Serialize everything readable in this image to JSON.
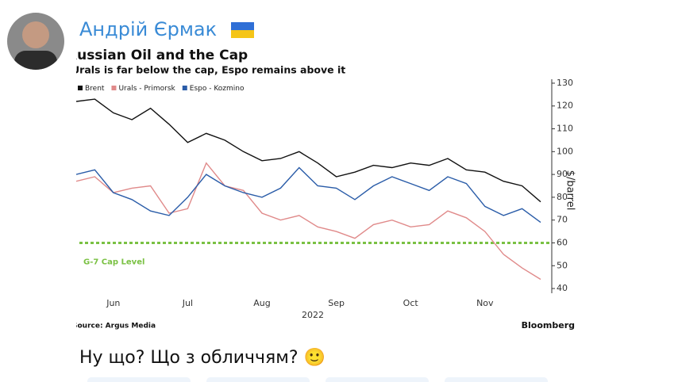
{
  "post": {
    "author": "Андрій Єрмак",
    "message": "Ну що? Що з обличчям? 🙂"
  },
  "chart_data": {
    "type": "line",
    "title": "Russian Oil and the Cap",
    "subtitle": "Urals is far below the cap, Espo remains above it",
    "source": "Source: Argus Media",
    "brand": "Bloomberg",
    "y_label": "$/barrel",
    "x_label": "2022",
    "categories": [
      null,
      null,
      "Jun",
      null,
      null,
      null,
      "Jul",
      null,
      null,
      null,
      "Aug",
      null,
      null,
      null,
      "Sep",
      null,
      null,
      null,
      "Oct",
      null,
      null,
      null,
      "Nov",
      null,
      null,
      null
    ],
    "series": [
      {
        "name": "Brent",
        "color": "#111111",
        "values": [
          122,
          123,
          117,
          114,
          119,
          112,
          104,
          108,
          105,
          100,
          96,
          97,
          100,
          95,
          89,
          91,
          94,
          93,
          95,
          94,
          97,
          92,
          91,
          87,
          85,
          78
        ]
      },
      {
        "name": "Urals - Primorsk",
        "color": "#e08a8a",
        "values": [
          87,
          89,
          82,
          84,
          85,
          73,
          75,
          95,
          85,
          83,
          73,
          70,
          72,
          67,
          65,
          62,
          68,
          70,
          67,
          68,
          74,
          71,
          65,
          55,
          49,
          44
        ]
      },
      {
        "name": "Espo - Kozmino",
        "color": "#2a5ca8",
        "values": [
          90,
          92,
          82,
          79,
          74,
          72,
          80,
          90,
          85,
          82,
          80,
          84,
          93,
          85,
          84,
          79,
          85,
          89,
          86,
          83,
          89,
          86,
          76,
          72,
          75,
          69
        ]
      }
    ],
    "annotations": [
      {
        "text": "G-7 Cap Level",
        "y": 60,
        "color": "#7ac143"
      }
    ],
    "ylim": [
      38,
      132
    ],
    "yticks": [
      40,
      50,
      60,
      70,
      80,
      90,
      100,
      110,
      120,
      130
    ],
    "legend": "top-left"
  }
}
